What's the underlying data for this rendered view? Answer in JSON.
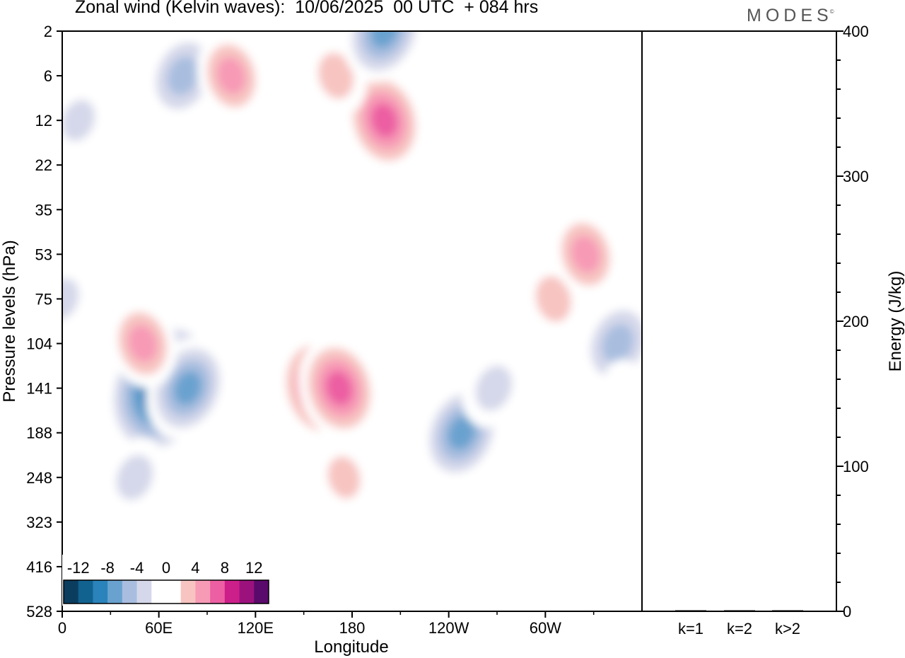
{
  "header": {
    "title": "Zonal wind (Kelvin waves):  10/06/2025  00 UTC  + 084 hrs",
    "brand": "MODES",
    "brand_mark": "©"
  },
  "colorbar": {
    "labels": [
      "-12",
      "-8",
      "-4",
      "0",
      "4",
      "8",
      "12"
    ],
    "colors": [
      "#0b3d5e",
      "#12628f",
      "#2a83bb",
      "#6aa2cf",
      "#a9bedf",
      "#d5d8ea",
      "#ffffff",
      "#ffffff",
      "#f7c4c1",
      "#f79ab6",
      "#ec5fa2",
      "#cc1f8a",
      "#9c127d",
      "#5a0a6b"
    ]
  },
  "chart_data": [
    {
      "type": "heatmap",
      "title": "Zonal wind (Kelvin waves):  10/06/2025  00 UTC  + 084 hrs",
      "xlabel": "Longitude",
      "ylabel": "Pressure levels (hPa)",
      "x_ticks": [
        {
          "lon": 0,
          "label": "0"
        },
        {
          "lon": 60,
          "label": "60E"
        },
        {
          "lon": 120,
          "label": "120E"
        },
        {
          "lon": 180,
          "label": "180"
        },
        {
          "lon": 240,
          "label": "120W"
        },
        {
          "lon": 300,
          "label": "60W"
        }
      ],
      "x_minor": [
        30,
        90,
        150,
        210,
        270,
        330
      ],
      "xlim": [
        0,
        360
      ],
      "y_levels": [
        "2",
        "6",
        "12",
        "22",
        "35",
        "53",
        "75",
        "104",
        "141",
        "188",
        "248",
        "323",
        "416",
        "528"
      ],
      "contour_levels": [
        -12,
        -10,
        -8,
        -6,
        -4,
        -2,
        0,
        2,
        4,
        6,
        8,
        10,
        12
      ],
      "anomalies": [
        {
          "lon": 62,
          "level": 141,
          "value": -13
        },
        {
          "lon": 78,
          "level": 141,
          "value": -8
        },
        {
          "lon": 45,
          "level": 248,
          "value": -5
        },
        {
          "lon": 248,
          "level": 188,
          "value": -8
        },
        {
          "lon": 268,
          "level": 141,
          "value": -5
        },
        {
          "lon": 345,
          "level": 104,
          "value": -7
        },
        {
          "lon": 160,
          "level": 141,
          "value": 9
        },
        {
          "lon": 172,
          "level": 141,
          "value": 8
        },
        {
          "lon": 175,
          "level": 248,
          "value": 4
        },
        {
          "lon": 205,
          "level": 416,
          "value": 2
        },
        {
          "lon": 305,
          "level": 75,
          "value": 5
        },
        {
          "lon": 325,
          "level": 53,
          "value": 6
        },
        {
          "lon": 50,
          "level": 104,
          "value": 6
        },
        {
          "lon": 200,
          "level": 12,
          "value": 8
        },
        {
          "lon": 170,
          "level": 6,
          "value": 5
        },
        {
          "lon": 75,
          "level": 6,
          "value": -7
        },
        {
          "lon": 200,
          "level": 2,
          "value": -8
        },
        {
          "lon": 10,
          "level": 12,
          "value": -4
        },
        {
          "lon": 0,
          "level": 75,
          "value": -4
        },
        {
          "lon": 60,
          "level": 35,
          "value": -3
        },
        {
          "lon": 105,
          "level": 6,
          "value": 6
        },
        {
          "lon": 350,
          "level": 141,
          "value": 2
        },
        {
          "lon": 345,
          "level": 416,
          "value": -3
        }
      ]
    },
    {
      "type": "bar",
      "categories": [
        "k=1",
        "k=2",
        "k>2"
      ],
      "values": [
        0.5,
        0.5,
        0.5
      ],
      "ylabel": "Energy (J/kg)",
      "ylim": [
        0,
        400
      ],
      "y_ticks": [
        0,
        100,
        200,
        300,
        400
      ]
    }
  ]
}
